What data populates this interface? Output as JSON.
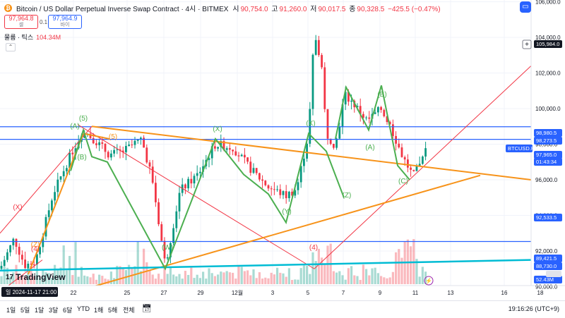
{
  "header": {
    "title": "Bitcoin / US Dollar Perpetual Inverse Swap Contract · 4시 · BITMEX",
    "ohlc": [
      {
        "label": "시",
        "value": "90,754.0"
      },
      {
        "label": "고",
        "value": "91,260.0"
      },
      {
        "label": "저",
        "value": "90,017.5"
      },
      {
        "label": "종",
        "value": "90,328.5"
      }
    ],
    "change": "−425.5 (−0.47%)"
  },
  "order": {
    "sell_price": "97,964.8",
    "sell_label": "셀",
    "spread": "0.1",
    "buy_price": "97,964.9",
    "buy_label": "바이"
  },
  "volume": {
    "label": "물륨 · 틱스",
    "value": "104.34M"
  },
  "price_axis": {
    "ticks": [
      "108,000.0",
      "106,000.0",
      "104,000.0",
      "102,000.0",
      "100,000.0",
      "98,000.0",
      "96,000.0",
      "94,000.0",
      "92,000.0",
      "90,000.0"
    ],
    "tags": [
      {
        "text": "105,984.0",
        "kind": "dark"
      },
      {
        "text": "98,980.5",
        "kind": "blue"
      },
      {
        "text": "98,273.5",
        "kind": "blue"
      },
      {
        "text": "BTCUSD.P",
        "kind": "blue"
      },
      {
        "text": "97,965.0",
        "kind": "blue"
      },
      {
        "text": "01:43:34",
        "kind": "blue"
      },
      {
        "text": "92,533.5",
        "kind": "blue"
      },
      {
        "text": "89,421.5",
        "kind": "blue"
      },
      {
        "text": "88,730.0",
        "kind": "blue"
      },
      {
        "text": "52.43M",
        "kind": "blue"
      }
    ]
  },
  "time_axis": {
    "ticks": [
      "22",
      "25",
      "27",
      "29",
      "12월",
      "3",
      "5",
      "7",
      "9",
      "11",
      "13",
      "16",
      "18"
    ],
    "cursor_label": "일 2024-11-17   21:00"
  },
  "wave_labels": [
    "(X)",
    "(Z)",
    "(4)",
    "(A)",
    "(5)",
    "(B)",
    "(5)",
    "(W)",
    "(X)",
    "(Y)",
    "(X)",
    "(4)",
    "(Z)",
    "(A)",
    "(B)",
    "(C)"
  ],
  "ranges": [
    "1일",
    "5일",
    "1달",
    "3달",
    "6달",
    "YTD",
    "1해",
    "5해",
    "전체"
  ],
  "clock": "19:16:26 (UTC+9)",
  "brand": "TradingView",
  "colors": {
    "up": "#089981",
    "down": "#f23645",
    "wave": "#4caf50",
    "orange": "#f7931a",
    "trend": "#f23645",
    "cyan": "#00bcd4",
    "hline": "#2962ff"
  }
}
